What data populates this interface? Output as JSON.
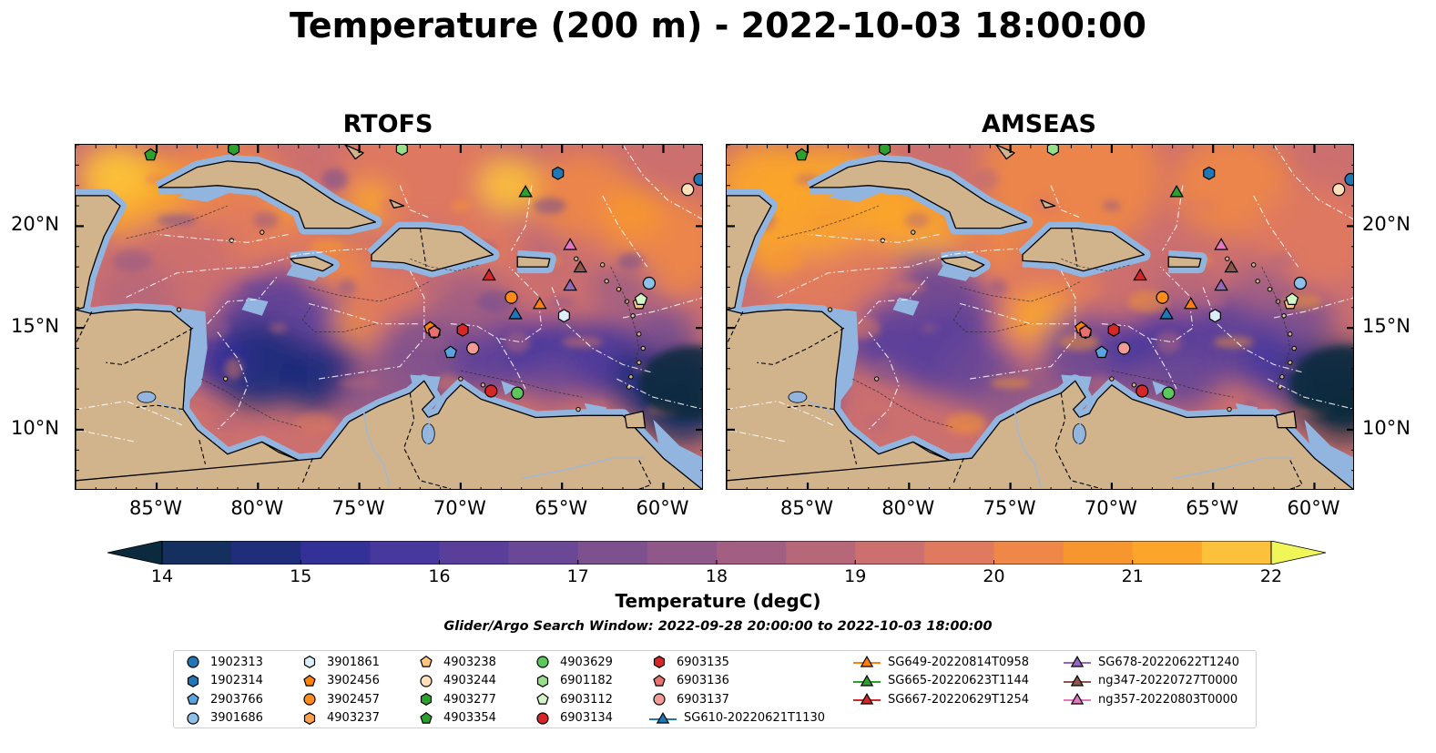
{
  "title": "Temperature (200 m) - 2022-10-03 18:00:00",
  "panels": [
    {
      "title": "RTOFS",
      "scheme": "rtofs"
    },
    {
      "title": "AMSEAS",
      "scheme": "amseas"
    }
  ],
  "map_extent": {
    "lon": [
      -89,
      -58
    ],
    "lat": [
      7,
      24
    ]
  },
  "lon_ticks": [
    {
      "value": -85,
      "label": "85°W"
    },
    {
      "value": -80,
      "label": "80°W"
    },
    {
      "value": -75,
      "label": "75°W"
    },
    {
      "value": -70,
      "label": "70°W"
    },
    {
      "value": -65,
      "label": "65°W"
    },
    {
      "value": -60,
      "label": "60°W"
    }
  ],
  "lat_ticks": [
    {
      "value": 20,
      "label": "20°N"
    },
    {
      "value": 15,
      "label": "15°N"
    },
    {
      "value": 10,
      "label": "10°N"
    }
  ],
  "colorbar": {
    "label": "Temperature (degC)",
    "min": 14,
    "max": 22,
    "step": 0.5,
    "ticks": [
      "14",
      "15",
      "16",
      "17",
      "18",
      "19",
      "20",
      "21",
      "22"
    ],
    "colors": [
      "#0b2a3e",
      "#15305e",
      "#1f2d7a",
      "#333098",
      "#47389d",
      "#5a3f9a",
      "#6b4895",
      "#7d508e",
      "#8f5888",
      "#a25f82",
      "#b7677a",
      "#cc6f6f",
      "#df7a5f",
      "#ee8748",
      "#f7962f",
      "#fba52a",
      "#fcc13a",
      "#f6dc45",
      "#f0f558"
    ],
    "land_color": "#d2b48c",
    "shelf_color": "#92b5e0"
  },
  "search_window": "Glider/Argo Search Window: 2022-09-28 20:00:00 to 2022-10-03 18:00:00",
  "legend": [
    {
      "label": "1902313",
      "marker": "circle",
      "color": "#1f77b4",
      "col": 0,
      "row": 0
    },
    {
      "label": "1902314",
      "marker": "hexagon",
      "color": "#1f77b4",
      "col": 0,
      "row": 1
    },
    {
      "label": "2903766",
      "marker": "pentagon",
      "color": "#5aa3de",
      "col": 0,
      "row": 2
    },
    {
      "label": "3901686",
      "marker": "circle",
      "color": "#8ec1ea",
      "col": 0,
      "row": 3
    },
    {
      "label": "3901861",
      "marker": "hexagon",
      "color": "#dceefa",
      "col": 1,
      "row": 0
    },
    {
      "label": "3902456",
      "marker": "pentagon",
      "color": "#ff7f0e",
      "col": 1,
      "row": 1
    },
    {
      "label": "3902457",
      "marker": "circle",
      "color": "#ff8c1a",
      "col": 1,
      "row": 2
    },
    {
      "label": "4903237",
      "marker": "hexagon",
      "color": "#ffa04d",
      "col": 1,
      "row": 3
    },
    {
      "label": "4903238",
      "marker": "pentagon",
      "color": "#ffc580",
      "col": 2,
      "row": 0
    },
    {
      "label": "4903244",
      "marker": "circle",
      "color": "#ffe0b8",
      "col": 2,
      "row": 1
    },
    {
      "label": "4903277",
      "marker": "hexagon",
      "color": "#2ca02c",
      "col": 2,
      "row": 2
    },
    {
      "label": "4903354",
      "marker": "pentagon",
      "color": "#2ca02c",
      "col": 2,
      "row": 3
    },
    {
      "label": "4903629",
      "marker": "circle",
      "color": "#5cc85c",
      "col": 3,
      "row": 0
    },
    {
      "label": "6901182",
      "marker": "hexagon",
      "color": "#98df8a",
      "col": 3,
      "row": 1
    },
    {
      "label": "6903112",
      "marker": "pentagon",
      "color": "#d4f5c8",
      "col": 3,
      "row": 2
    },
    {
      "label": "6903134",
      "marker": "circle",
      "color": "#d62728",
      "col": 3,
      "row": 3
    },
    {
      "label": "6903135",
      "marker": "hexagon",
      "color": "#d62728",
      "col": 4,
      "row": 0
    },
    {
      "label": "6903136",
      "marker": "pentagon",
      "color": "#e8706e",
      "col": 4,
      "row": 1
    },
    {
      "label": "6903137",
      "marker": "circle",
      "color": "#f19a98",
      "col": 4,
      "row": 2
    },
    {
      "label": "SG610-20220621T1130",
      "marker": "triangle-line",
      "color": "#1f77b4",
      "col": 4,
      "row": 3
    },
    {
      "label": "SG649-20220814T0958",
      "marker": "triangle-line",
      "color": "#ff7f0e",
      "col": 5,
      "row": 0
    },
    {
      "label": "SG665-20220623T1144",
      "marker": "triangle-line",
      "color": "#2ca02c",
      "col": 5,
      "row": 1
    },
    {
      "label": "SG667-20220629T1254",
      "marker": "triangle-line",
      "color": "#d62728",
      "col": 5,
      "row": 2
    },
    {
      "label": "SG678-20220622T1240",
      "marker": "triangle-line",
      "color": "#9467bd",
      "col": 6,
      "row": 0
    },
    {
      "label": "ng347-20220727T0000",
      "marker": "triangle-line",
      "color": "#8c564b",
      "col": 6,
      "row": 1
    },
    {
      "label": "ng357-20220803T0000",
      "marker": "triangle-line",
      "color": "#e377c2",
      "col": 6,
      "row": 2
    }
  ],
  "observations": [
    {
      "id": "1902313",
      "lon": -58.2,
      "lat": 22.3
    },
    {
      "id": "1902314",
      "lon": -65.2,
      "lat": 22.6
    },
    {
      "id": "2903766",
      "lon": -70.5,
      "lat": 13.8
    },
    {
      "id": "3901686",
      "lon": -60.7,
      "lat": 17.2
    },
    {
      "id": "3901861",
      "lon": -64.9,
      "lat": 15.6
    },
    {
      "id": "3902456",
      "lon": -71.5,
      "lat": 15.0
    },
    {
      "id": "3902457",
      "lon": -67.5,
      "lat": 16.5
    },
    {
      "id": "4903237",
      "lon": -71.3,
      "lat": 14.8
    },
    {
      "id": "4903238",
      "lon": -61.2,
      "lat": 16.2
    },
    {
      "id": "4903244",
      "lon": -58.8,
      "lat": 21.8
    },
    {
      "id": "4903277",
      "lon": -81.2,
      "lat": 23.8
    },
    {
      "id": "4903354",
      "lon": -85.3,
      "lat": 23.5
    },
    {
      "id": "4903629",
      "lon": -67.2,
      "lat": 11.8
    },
    {
      "id": "6901182",
      "lon": -72.9,
      "lat": 23.8
    },
    {
      "id": "6903112",
      "lon": -61.1,
      "lat": 16.4
    },
    {
      "id": "6903134",
      "lon": -68.5,
      "lat": 11.9
    },
    {
      "id": "6903135",
      "lon": -69.9,
      "lat": 14.9
    },
    {
      "id": "6903136",
      "lon": -71.3,
      "lat": 14.8
    },
    {
      "id": "6903137",
      "lon": -69.4,
      "lat": 14.0
    },
    {
      "id": "SG610-20220621T1130",
      "lon": -67.3,
      "lat": 15.7
    },
    {
      "id": "SG649-20220814T0958",
      "lon": -66.1,
      "lat": 16.2
    },
    {
      "id": "SG665-20220623T1144",
      "lon": -66.8,
      "lat": 21.7
    },
    {
      "id": "SG667-20220629T1254",
      "lon": -68.6,
      "lat": 17.6
    },
    {
      "id": "SG678-20220622T1240",
      "lon": -64.6,
      "lat": 17.1
    },
    {
      "id": "ng347-20220727T0000",
      "lon": -64.1,
      "lat": 18.0
    },
    {
      "id": "ng357-20220803T0000",
      "lon": -64.6,
      "lat": 19.1
    }
  ]
}
